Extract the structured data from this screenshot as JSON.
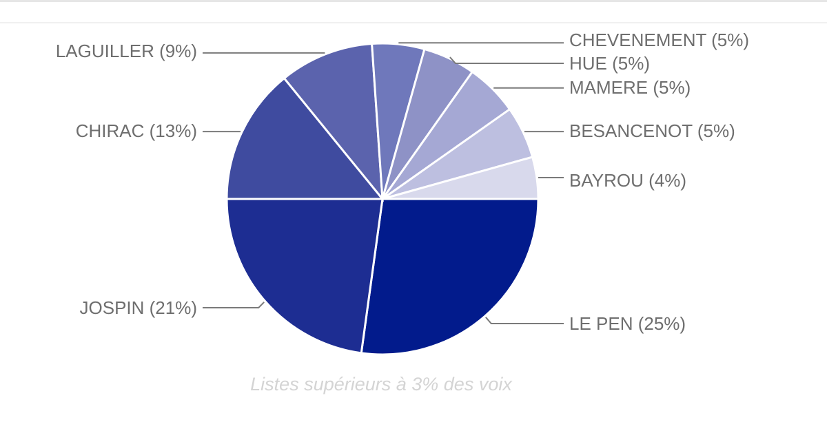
{
  "chart_data": {
    "type": "pie",
    "caption": "Listes supérieurs à 3% des voix",
    "legend": "none",
    "slices": [
      {
        "name": "LE PEN",
        "value": 25,
        "label": "LE PEN (25%)",
        "color": "#021b8c"
      },
      {
        "name": "JOSPIN",
        "value": 21,
        "label": "JOSPIN (21%)",
        "color": "#1d2d92"
      },
      {
        "name": "CHIRAC",
        "value": 13,
        "label": "CHIRAC (13%)",
        "color": "#3f4b9f"
      },
      {
        "name": "LAGUILLER",
        "value": 9,
        "label": "LAGUILLER (9%)",
        "color": "#5b63ad"
      },
      {
        "name": "CHEVENEMENT",
        "value": 5,
        "label": "CHEVENEMENT (5%)",
        "color": "#6f78bb"
      },
      {
        "name": "HUE",
        "value": 5,
        "label": "HUE (5%)",
        "color": "#8e92c6"
      },
      {
        "name": "MAMERE",
        "value": 5,
        "label": "MAMERE (5%)",
        "color": "#a5a8d4"
      },
      {
        "name": "BESANCENOT",
        "value": 5,
        "label": "BESANCENOT (5%)",
        "color": "#bdbfe0"
      },
      {
        "name": "BAYROU",
        "value": 4,
        "label": "BAYROU (4%)",
        "color": "#d8d9ec"
      }
    ]
  }
}
